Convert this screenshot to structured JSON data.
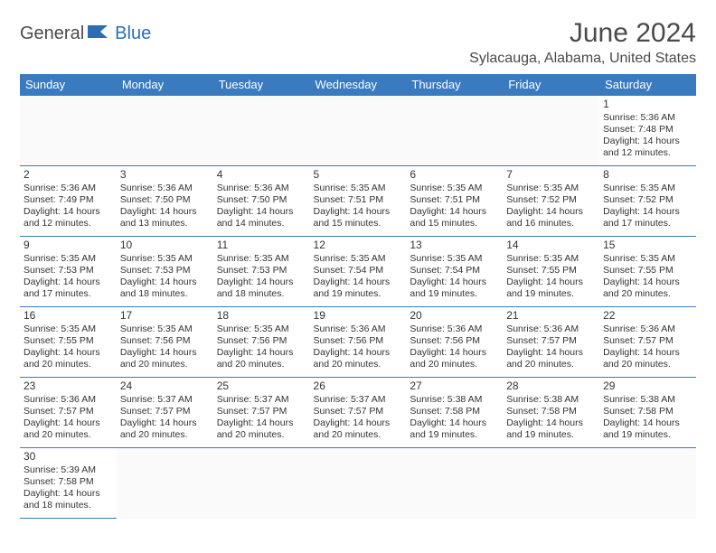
{
  "logo": {
    "part1": "General",
    "part2": "Blue"
  },
  "title": "June 2024",
  "location": "Sylacauga, Alabama, United States",
  "weekdays": [
    "Sunday",
    "Monday",
    "Tuesday",
    "Wednesday",
    "Thursday",
    "Friday",
    "Saturday"
  ],
  "colors": {
    "header_bg": "#3a7bc0",
    "header_text": "#ffffff",
    "border": "#3a7bc0",
    "logo_blue": "#2c6fb0",
    "text": "#4a4a4a"
  },
  "grid": [
    [
      null,
      null,
      null,
      null,
      null,
      null,
      {
        "n": "1",
        "sr": "5:36 AM",
        "ss": "7:48 PM",
        "dl": "14 hours and 12 minutes."
      }
    ],
    [
      {
        "n": "2",
        "sr": "5:36 AM",
        "ss": "7:49 PM",
        "dl": "14 hours and 12 minutes."
      },
      {
        "n": "3",
        "sr": "5:36 AM",
        "ss": "7:50 PM",
        "dl": "14 hours and 13 minutes."
      },
      {
        "n": "4",
        "sr": "5:36 AM",
        "ss": "7:50 PM",
        "dl": "14 hours and 14 minutes."
      },
      {
        "n": "5",
        "sr": "5:35 AM",
        "ss": "7:51 PM",
        "dl": "14 hours and 15 minutes."
      },
      {
        "n": "6",
        "sr": "5:35 AM",
        "ss": "7:51 PM",
        "dl": "14 hours and 15 minutes."
      },
      {
        "n": "7",
        "sr": "5:35 AM",
        "ss": "7:52 PM",
        "dl": "14 hours and 16 minutes."
      },
      {
        "n": "8",
        "sr": "5:35 AM",
        "ss": "7:52 PM",
        "dl": "14 hours and 17 minutes."
      }
    ],
    [
      {
        "n": "9",
        "sr": "5:35 AM",
        "ss": "7:53 PM",
        "dl": "14 hours and 17 minutes."
      },
      {
        "n": "10",
        "sr": "5:35 AM",
        "ss": "7:53 PM",
        "dl": "14 hours and 18 minutes."
      },
      {
        "n": "11",
        "sr": "5:35 AM",
        "ss": "7:53 PM",
        "dl": "14 hours and 18 minutes."
      },
      {
        "n": "12",
        "sr": "5:35 AM",
        "ss": "7:54 PM",
        "dl": "14 hours and 19 minutes."
      },
      {
        "n": "13",
        "sr": "5:35 AM",
        "ss": "7:54 PM",
        "dl": "14 hours and 19 minutes."
      },
      {
        "n": "14",
        "sr": "5:35 AM",
        "ss": "7:55 PM",
        "dl": "14 hours and 19 minutes."
      },
      {
        "n": "15",
        "sr": "5:35 AM",
        "ss": "7:55 PM",
        "dl": "14 hours and 20 minutes."
      }
    ],
    [
      {
        "n": "16",
        "sr": "5:35 AM",
        "ss": "7:55 PM",
        "dl": "14 hours and 20 minutes."
      },
      {
        "n": "17",
        "sr": "5:35 AM",
        "ss": "7:56 PM",
        "dl": "14 hours and 20 minutes."
      },
      {
        "n": "18",
        "sr": "5:35 AM",
        "ss": "7:56 PM",
        "dl": "14 hours and 20 minutes."
      },
      {
        "n": "19",
        "sr": "5:36 AM",
        "ss": "7:56 PM",
        "dl": "14 hours and 20 minutes."
      },
      {
        "n": "20",
        "sr": "5:36 AM",
        "ss": "7:56 PM",
        "dl": "14 hours and 20 minutes."
      },
      {
        "n": "21",
        "sr": "5:36 AM",
        "ss": "7:57 PM",
        "dl": "14 hours and 20 minutes."
      },
      {
        "n": "22",
        "sr": "5:36 AM",
        "ss": "7:57 PM",
        "dl": "14 hours and 20 minutes."
      }
    ],
    [
      {
        "n": "23",
        "sr": "5:36 AM",
        "ss": "7:57 PM",
        "dl": "14 hours and 20 minutes."
      },
      {
        "n": "24",
        "sr": "5:37 AM",
        "ss": "7:57 PM",
        "dl": "14 hours and 20 minutes."
      },
      {
        "n": "25",
        "sr": "5:37 AM",
        "ss": "7:57 PM",
        "dl": "14 hours and 20 minutes."
      },
      {
        "n": "26",
        "sr": "5:37 AM",
        "ss": "7:57 PM",
        "dl": "14 hours and 20 minutes."
      },
      {
        "n": "27",
        "sr": "5:38 AM",
        "ss": "7:58 PM",
        "dl": "14 hours and 19 minutes."
      },
      {
        "n": "28",
        "sr": "5:38 AM",
        "ss": "7:58 PM",
        "dl": "14 hours and 19 minutes."
      },
      {
        "n": "29",
        "sr": "5:38 AM",
        "ss": "7:58 PM",
        "dl": "14 hours and 19 minutes."
      }
    ],
    [
      {
        "n": "30",
        "sr": "5:39 AM",
        "ss": "7:58 PM",
        "dl": "14 hours and 18 minutes."
      },
      null,
      null,
      null,
      null,
      null,
      null
    ]
  ],
  "labels": {
    "sunrise": "Sunrise:",
    "sunset": "Sunset:",
    "daylight": "Daylight:"
  }
}
